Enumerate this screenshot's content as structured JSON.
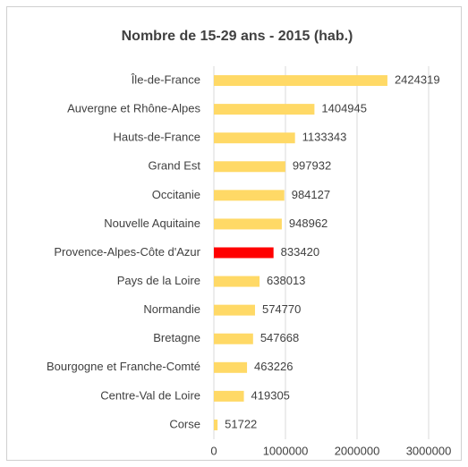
{
  "chart_data": {
    "type": "bar",
    "orientation": "horizontal",
    "title": "Nombre de 15-29 ans - 2015 (hab.)",
    "categories": [
      "Île-de-France",
      "Auvergne et Rhône-Alpes",
      "Hauts-de-France",
      "Grand Est",
      "Occitanie",
      "Nouvelle Aquitaine",
      "Provence-Alpes-Côte d'Azur",
      "Pays de la Loire",
      "Normandie",
      "Bretagne",
      "Bourgogne et Franche-Comté",
      "Centre-Val de Loire",
      "Corse"
    ],
    "values": [
      2424319,
      1404945,
      1133343,
      997932,
      984127,
      948962,
      833420,
      638013,
      574770,
      547668,
      463226,
      419305,
      51722
    ],
    "colors": [
      "#ffd966",
      "#ffd966",
      "#ffd966",
      "#ffd966",
      "#ffd966",
      "#ffd966",
      "#ff0000",
      "#ffd966",
      "#ffd966",
      "#ffd966",
      "#ffd966",
      "#ffd966",
      "#ffd966"
    ],
    "xlim": [
      0,
      3000000
    ],
    "xticks": [
      0,
      1000000,
      2000000,
      3000000
    ],
    "grid": true
  }
}
